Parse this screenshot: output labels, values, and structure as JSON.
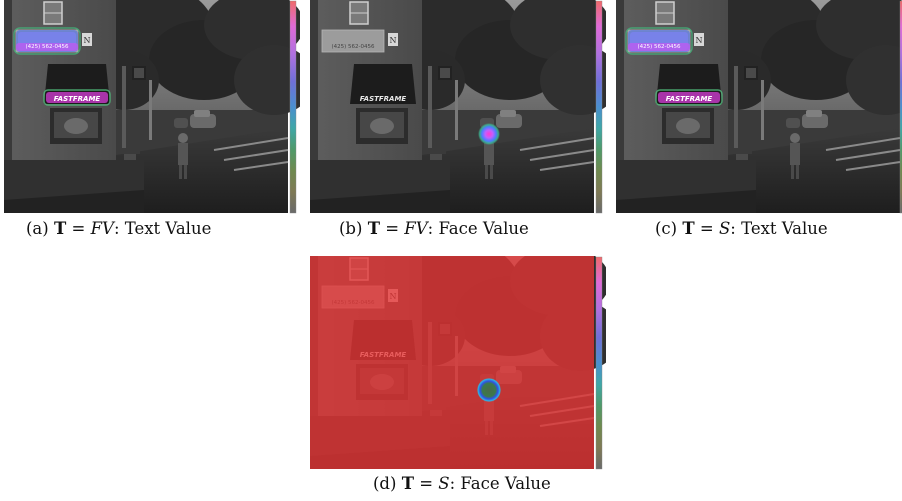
{
  "figure": {
    "panels": [
      {
        "id": "a",
        "label": "(a)",
        "symbol": "T",
        "equals": "=",
        "method": "FV",
        "suffix": ": Text Value",
        "overlay": "text"
      },
      {
        "id": "b",
        "label": "(b)",
        "symbol": "T",
        "equals": "=",
        "method": "FV",
        "suffix": ": Face Value",
        "overlay": "face"
      },
      {
        "id": "c",
        "label": "(c)",
        "symbol": "T",
        "equals": "=",
        "method": "S",
        "suffix": ": Text Value",
        "overlay": "text"
      },
      {
        "id": "d",
        "label": "(d)",
        "symbol": "T",
        "equals": "=",
        "method": "S",
        "suffix": ": Face Value",
        "overlay": "face-red"
      }
    ],
    "scene_text": {
      "storefront_sign": "FASTFRAME",
      "phone_number": "(425) 562-0456",
      "building_letter": "N"
    },
    "colorbar_colors": [
      "#f06a6a",
      "#e06ad8",
      "#b070e0",
      "#6f6fd8",
      "#4a8fcf",
      "#3fa7a7",
      "#4f9a6a",
      "#6f8a4f",
      "#7f7a55",
      "#6a6a6a"
    ],
    "colors": {
      "heat_text": "#ff40ff",
      "heat_face": "#ff50ff",
      "red_wash": "#e83434"
    }
  }
}
